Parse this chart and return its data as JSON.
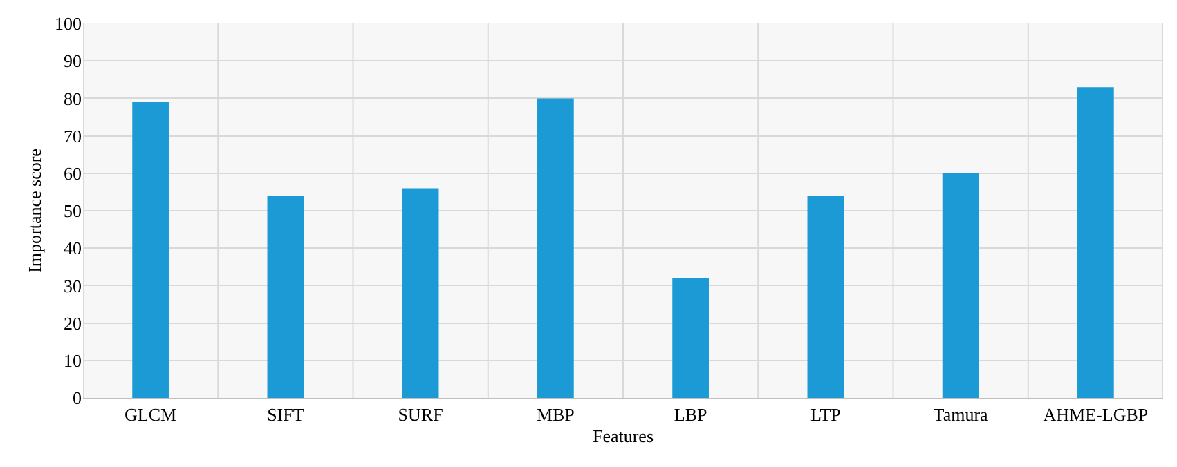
{
  "chart_data": {
    "type": "bar",
    "xlabel": "Features",
    "ylabel": "Importance score",
    "categories": [
      "GLCM",
      "SIFT",
      "SURF",
      "MBP",
      "LBP",
      "LTP",
      "Tamura",
      "AHME-LGBP"
    ],
    "values": [
      79,
      54,
      56,
      80,
      32,
      54,
      60,
      83
    ],
    "color": "#1b9ad6",
    "ylim": [
      0,
      100
    ],
    "yticks": [
      0,
      10,
      20,
      30,
      40,
      50,
      60,
      70,
      80,
      90,
      100
    ],
    "grid": true,
    "legend": false
  }
}
